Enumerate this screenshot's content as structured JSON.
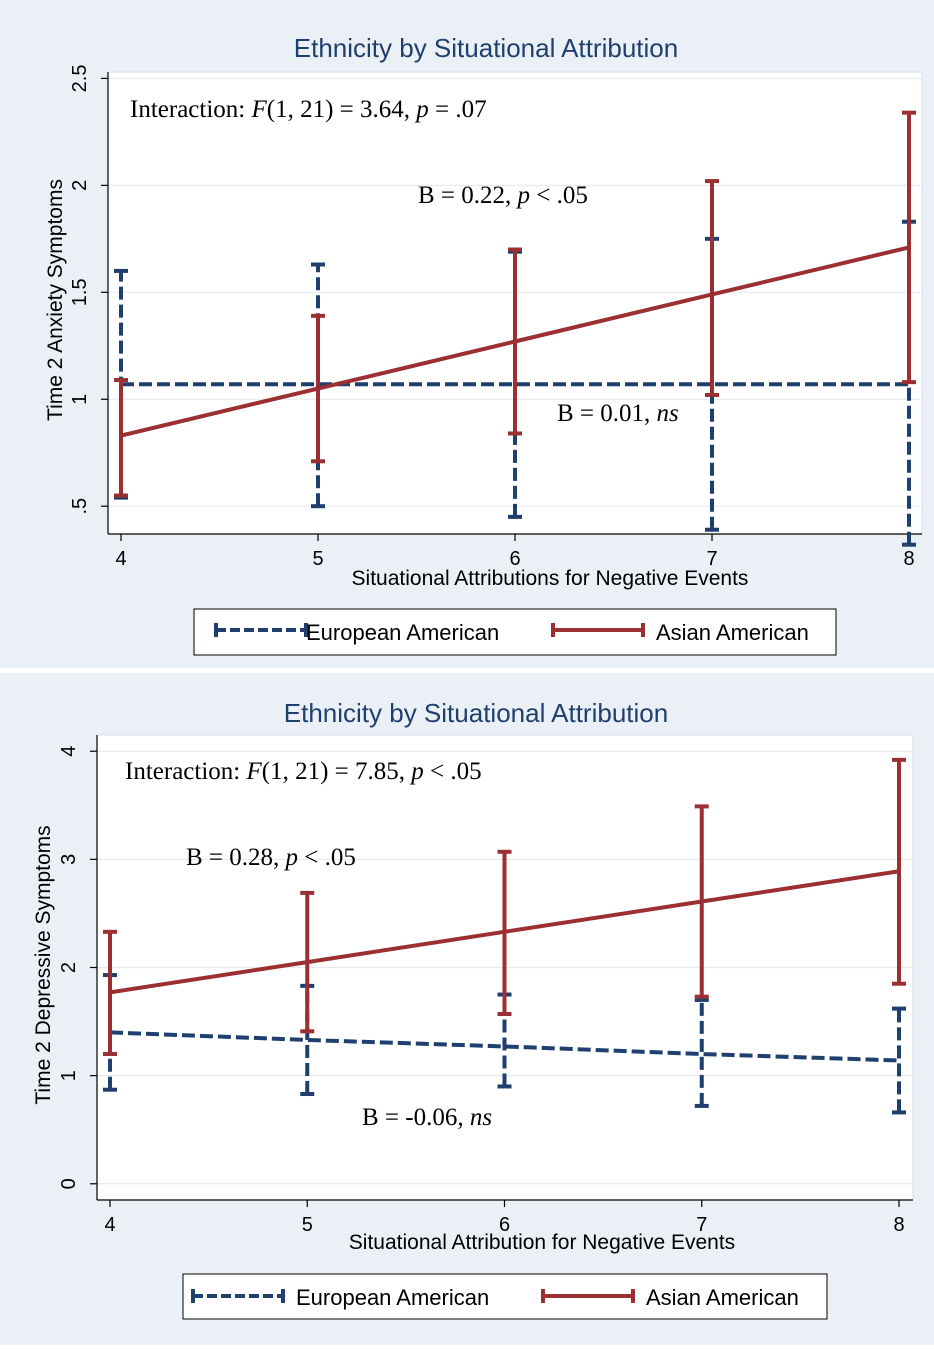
{
  "chart_data": [
    {
      "type": "line",
      "title": "Ethnicity by Situational Attribution",
      "xlabel": "Situational Attributions for Negative Events",
      "ylabel": "Time 2 Anxiety Symptoms",
      "x": [
        4,
        5,
        6,
        7,
        8
      ],
      "xticks": [
        "4",
        "5",
        "6",
        "7",
        "8"
      ],
      "xlim": [
        4,
        8
      ],
      "yticks": [
        ".5",
        "1",
        "1.5",
        "2",
        "2.5"
      ],
      "ytick_values": [
        0.5,
        1,
        1.5,
        2,
        2.5
      ],
      "ylim": [
        0.37,
        2.53
      ],
      "grid": true,
      "legend_position": "bottom",
      "series": [
        {
          "name": "European American",
          "color": "#1f3f6e",
          "line_style": "dashed",
          "values": [
            1.07,
            1.07,
            1.07,
            1.07,
            1.07
          ],
          "ci_low": [
            0.54,
            0.5,
            0.45,
            0.39,
            0.32
          ],
          "ci_high": [
            1.6,
            1.63,
            1.69,
            1.75,
            1.83
          ]
        },
        {
          "name": "Asian American",
          "color": "#9c2f31",
          "line_style": "solid",
          "values": [
            0.83,
            1.05,
            1.27,
            1.49,
            1.71
          ],
          "ci_low": [
            0.55,
            0.71,
            0.84,
            1.02,
            1.08
          ],
          "ci_high": [
            1.09,
            1.39,
            1.7,
            2.02,
            2.34
          ]
        }
      ],
      "annotations": {
        "interaction": {
          "prefix": "Interaction: ",
          "f": "F",
          "stats": "(1, 21) = 3.64, ",
          "p": "p",
          "pval": " = .07"
        },
        "asian_b": {
          "prefix": "B = 0.22, ",
          "p": "p",
          "suffix": " < .05"
        },
        "european_b": {
          "prefix": "B = 0.01, ",
          "ns": "ns"
        }
      }
    },
    {
      "type": "line",
      "title": "Ethnicity by Situational Attribution",
      "xlabel": "Situational Attribution for Negative Events",
      "ylabel": "Time 2 Depressive Symptoms",
      "x": [
        4,
        5,
        6,
        7,
        8
      ],
      "xticks": [
        "4",
        "5",
        "6",
        "7",
        "8"
      ],
      "xlim": [
        4,
        8
      ],
      "yticks": [
        "0",
        "1",
        "2",
        "3",
        "4"
      ],
      "ytick_values": [
        0,
        1,
        2,
        3,
        4
      ],
      "ylim": [
        -0.15,
        4.15
      ],
      "grid": true,
      "legend_position": "bottom",
      "series": [
        {
          "name": "European American",
          "color": "#1f3f6e",
          "line_style": "dashed",
          "values": [
            1.4,
            1.33,
            1.27,
            1.2,
            1.14
          ],
          "ci_low": [
            0.87,
            0.83,
            0.9,
            0.72,
            0.66
          ],
          "ci_high": [
            1.93,
            1.83,
            1.75,
            1.7,
            1.62
          ]
        },
        {
          "name": "Asian American",
          "color": "#9c2f31",
          "line_style": "solid",
          "values": [
            1.77,
            2.05,
            2.33,
            2.61,
            2.89
          ],
          "ci_low": [
            1.2,
            1.41,
            1.57,
            1.73,
            1.85
          ],
          "ci_high": [
            2.33,
            2.69,
            3.07,
            3.49,
            3.92
          ]
        }
      ],
      "annotations": {
        "interaction": {
          "prefix": "Interaction: ",
          "f": "F",
          "stats": "(1, 21) = 7.85, ",
          "p": "p",
          "pval": " < .05"
        },
        "asian_b": {
          "prefix": "B = 0.28, ",
          "p": "p",
          "suffix": " < .05"
        },
        "european_b": {
          "prefix": "B = -0.06, ",
          "ns": "ns"
        }
      }
    }
  ]
}
